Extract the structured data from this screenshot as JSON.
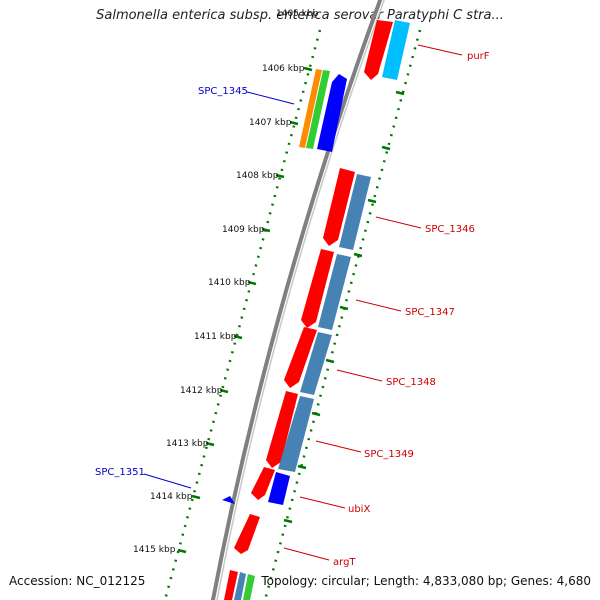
{
  "title": "Salmonella enterica subsp. enterica serovar Paratyphi C stra...",
  "footer": {
    "accession": "Accession: NC_012125",
    "topology": "Topology: circular; Length: 4,833,080 bp; Genes: 4,680"
  },
  "ticks": [
    "1405 kbp",
    "1406 kbp",
    "1407 kbp",
    "1408 kbp",
    "1409 kbp",
    "1410 kbp",
    "1411 kbp",
    "1412 kbp",
    "1413 kbp",
    "1414 kbp",
    "1415 kbp"
  ],
  "gene_labels": [
    {
      "text": "purF",
      "color": "#cc0000"
    },
    {
      "text": "SPC_1345",
      "color": "#0000cc"
    },
    {
      "text": "SPC_1346",
      "color": "#cc0000"
    },
    {
      "text": "SPC_1347",
      "color": "#cc0000"
    },
    {
      "text": "SPC_1348",
      "color": "#cc0000"
    },
    {
      "text": "SPC_1349",
      "color": "#cc0000"
    },
    {
      "text": "SPC_1351",
      "color": "#0000cc"
    },
    {
      "text": "ubiX",
      "color": "#cc0000"
    },
    {
      "text": "argT",
      "color": "#cc0000"
    }
  ],
  "colors": {
    "forward_cds": "#ff0000",
    "reverse_cds": "#0000ff",
    "cog_blue": "#4682b4",
    "cog_cyan": "#00bfff",
    "cog_orange": "#ff8c00",
    "cog_green": "#32cd32",
    "backbone": "#808080",
    "gc_dots": "#007700"
  }
}
